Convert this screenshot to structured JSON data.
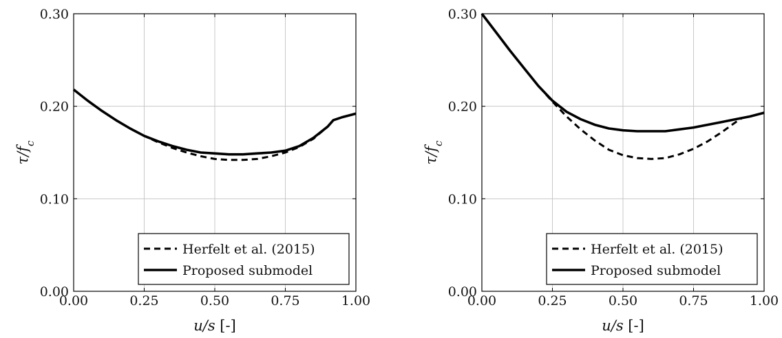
{
  "chart_data": [
    {
      "type": "line",
      "xlabel": "u/s [-]",
      "ylabel": "τ/f_c",
      "xlim": [
        0.0,
        1.0
      ],
      "ylim": [
        0.0,
        0.3
      ],
      "xticks": [
        "0.00",
        "0.25",
        "0.50",
        "0.75",
        "1.00"
      ],
      "yticks": [
        "0.00",
        "0.10",
        "0.20",
        "0.30"
      ],
      "grid": true,
      "legend_position": "bottom-right",
      "series": [
        {
          "name": "Herfelt et al. (2015)",
          "style": "dashed",
          "x": [
            0.0,
            0.05,
            0.1,
            0.15,
            0.2,
            0.25,
            0.3,
            0.35,
            0.4,
            0.45,
            0.5,
            0.55,
            0.6,
            0.65,
            0.7,
            0.75,
            0.8,
            0.85,
            0.9,
            0.92,
            0.95,
            1.0
          ],
          "y": [
            0.218,
            0.206,
            0.195,
            0.185,
            0.176,
            0.168,
            0.161,
            0.155,
            0.15,
            0.146,
            0.143,
            0.142,
            0.142,
            0.143,
            0.146,
            0.15,
            0.156,
            0.165,
            0.178,
            0.185,
            0.188,
            0.192
          ]
        },
        {
          "name": "Proposed submodel",
          "style": "solid",
          "x": [
            0.0,
            0.05,
            0.1,
            0.15,
            0.2,
            0.25,
            0.3,
            0.35,
            0.4,
            0.45,
            0.5,
            0.55,
            0.6,
            0.65,
            0.7,
            0.75,
            0.8,
            0.85,
            0.9,
            0.92,
            0.95,
            1.0
          ],
          "y": [
            0.218,
            0.206,
            0.195,
            0.185,
            0.176,
            0.168,
            0.162,
            0.157,
            0.153,
            0.15,
            0.149,
            0.148,
            0.148,
            0.149,
            0.15,
            0.152,
            0.157,
            0.166,
            0.178,
            0.185,
            0.188,
            0.192
          ]
        }
      ]
    },
    {
      "type": "line",
      "xlabel": "u/s [-]",
      "ylabel": "τ/f_c",
      "xlim": [
        0.0,
        1.0
      ],
      "ylim": [
        0.0,
        0.3
      ],
      "xticks": [
        "0.00",
        "0.25",
        "0.50",
        "0.75",
        "1.00"
      ],
      "yticks": [
        "0.00",
        "0.10",
        "0.20",
        "0.30"
      ],
      "grid": true,
      "legend_position": "bottom-right",
      "series": [
        {
          "name": "Herfelt et al. (2015)",
          "style": "dashed",
          "x": [
            0.0,
            0.05,
            0.1,
            0.15,
            0.2,
            0.25,
            0.3,
            0.35,
            0.4,
            0.45,
            0.5,
            0.55,
            0.6,
            0.65,
            0.7,
            0.75,
            0.8,
            0.85,
            0.9,
            0.92
          ],
          "y": [
            0.3,
            0.28,
            0.26,
            0.241,
            0.222,
            0.205,
            0.189,
            0.175,
            0.163,
            0.153,
            0.147,
            0.144,
            0.143,
            0.144,
            0.148,
            0.154,
            0.162,
            0.172,
            0.183,
            0.187
          ]
        },
        {
          "name": "Proposed submodel",
          "style": "solid",
          "x": [
            0.0,
            0.05,
            0.1,
            0.15,
            0.2,
            0.25,
            0.3,
            0.35,
            0.4,
            0.45,
            0.5,
            0.55,
            0.6,
            0.65,
            0.7,
            0.75,
            0.8,
            0.85,
            0.9,
            0.95,
            1.0
          ],
          "y": [
            0.3,
            0.28,
            0.26,
            0.241,
            0.222,
            0.206,
            0.194,
            0.186,
            0.18,
            0.176,
            0.174,
            0.173,
            0.173,
            0.173,
            0.175,
            0.177,
            0.18,
            0.183,
            0.186,
            0.189,
            0.193
          ]
        }
      ]
    }
  ]
}
